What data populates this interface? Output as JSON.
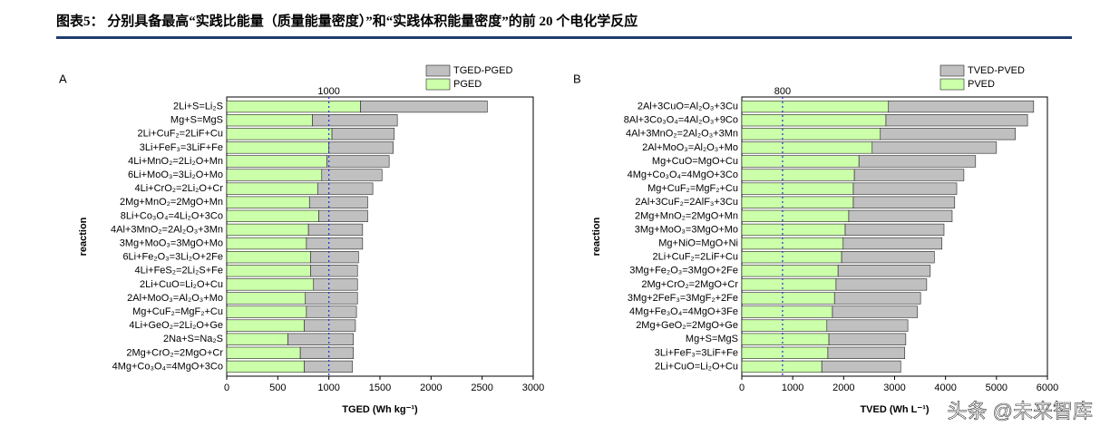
{
  "header": {
    "title": "图表5： 分别具备最高“实践比能量（质量能量密度）”和“实践体积能量密度”的前 20 个电化学反应"
  },
  "watermark": "头条 @未来智库",
  "chart_data": [
    {
      "type": "bar",
      "orientation": "horizontal",
      "stacked": true,
      "panel": "A",
      "xlabel": "TGED (Wh kg⁻¹)",
      "ylabel": "reaction",
      "refline": 1000,
      "refline_label": "1000",
      "categories": [
        "2Li+S=Li₂S",
        "Mg+S=MgS",
        "2Li+CuF₂=2LiF+Cu",
        "3Li+FeF₃=3LiF+Fe",
        "4Li+MnO₂=2Li₂O+Mn",
        "6Li+MoO₃=3Li₂O+Mo",
        "4Li+CrO₂=2Li₂O+Cr",
        "2Mg+MnO₂=2MgO+Mn",
        "8Li+Co₃O₄=4Li₂O+3Co",
        "4Al+3MnO₂=2Al₂O₃+3Mn",
        "3Mg+MoO₃=3MgO+Mo",
        "6Li+Fe₂O₃=3Li₂O+2Fe",
        "4Li+FeS₂=2Li₂S+Fe",
        "2Li+CuO=Li₂O+Cu",
        "2Al+MoO₃=Al₂O₃+Mo",
        "Mg+CuF₂=MgF₂+Cu",
        "4Li+GeO₂=2Li₂O+Ge",
        "2Na+S=Na₂S",
        "2Mg+CrO₂=2MgO+Cr",
        "4Mg+Co₃O₄=4MgO+3Co"
      ],
      "series": [
        {
          "name": "PGED",
          "color": "#ccffaa",
          "values": [
            1310,
            840,
            1030,
            1000,
            980,
            930,
            890,
            810,
            900,
            800,
            780,
            820,
            820,
            850,
            770,
            780,
            760,
            600,
            720,
            760
          ]
        },
        {
          "name": "TGED-PGED",
          "color": "#c0c0c0",
          "values": [
            1240,
            830,
            610,
            630,
            610,
            590,
            540,
            570,
            480,
            530,
            550,
            470,
            460,
            430,
            510,
            490,
            500,
            640,
            520,
            470
          ]
        }
      ],
      "xlim": [
        0,
        3000
      ],
      "xticks": [
        0,
        500,
        1000,
        1500,
        2000,
        2500,
        3000
      ],
      "legend": "upper right"
    },
    {
      "type": "bar",
      "orientation": "horizontal",
      "stacked": true,
      "panel": "B",
      "xlabel": "TVED (Wh L⁻¹)",
      "ylabel": "reaction",
      "refline": 800,
      "refline_label": "800",
      "categories": [
        "2Al+3CuO=Al₂O₃+3Cu",
        "8Al+3Co₃O₄=4Al₂O₃+9Co",
        "4Al+3MnO₂=2Al₂O₃+3Mn",
        "2Al+MoO₃=Al₂O₃+Mo",
        "Mg+CuO=MgO+Cu",
        "4Mg+Co₃O₄=4MgO+3Co",
        "Mg+CuF₂=MgF₂+Cu",
        "2Al+3CuF₂=2AlF₃+3Cu",
        "2Mg+MnO₂=2MgO+Mn",
        "3Mg+MoO₃=3MgO+Mo",
        "Mg+NiO=MgO+Ni",
        "2Li+CuF₂=2LiF+Cu",
        "3Mg+Fe₂O₃=3MgO+2Fe",
        "2Mg+CrO₂=2MgO+Cr",
        "3Mg+2FeF₃=3MgF₂+2Fe",
        "4Mg+Fe₃O₄=4MgO+3Fe",
        "2Mg+GeO₂=2MgO+Ge",
        "Mg+S=MgS",
        "3Li+FeF₃=3LiF+Fe",
        "2Li+CuO=Li₂O+Cu"
      ],
      "series": [
        {
          "name": "PVED",
          "color": "#ccffaa",
          "values": [
            2880,
            2830,
            2720,
            2560,
            2300,
            2210,
            2190,
            2190,
            2100,
            2030,
            1990,
            1960,
            1890,
            1850,
            1820,
            1780,
            1670,
            1710,
            1690,
            1570
          ]
        },
        {
          "name": "TVED-PVED",
          "color": "#c0c0c0",
          "values": [
            2850,
            2780,
            2650,
            2440,
            2290,
            2150,
            2030,
            1990,
            2030,
            1940,
            1940,
            1820,
            1810,
            1780,
            1690,
            1670,
            1590,
            1510,
            1510,
            1550
          ]
        }
      ],
      "xlim": [
        0,
        6000
      ],
      "xticks": [
        0,
        1000,
        2000,
        3000,
        4000,
        5000,
        6000
      ],
      "legend": "upper right"
    }
  ]
}
